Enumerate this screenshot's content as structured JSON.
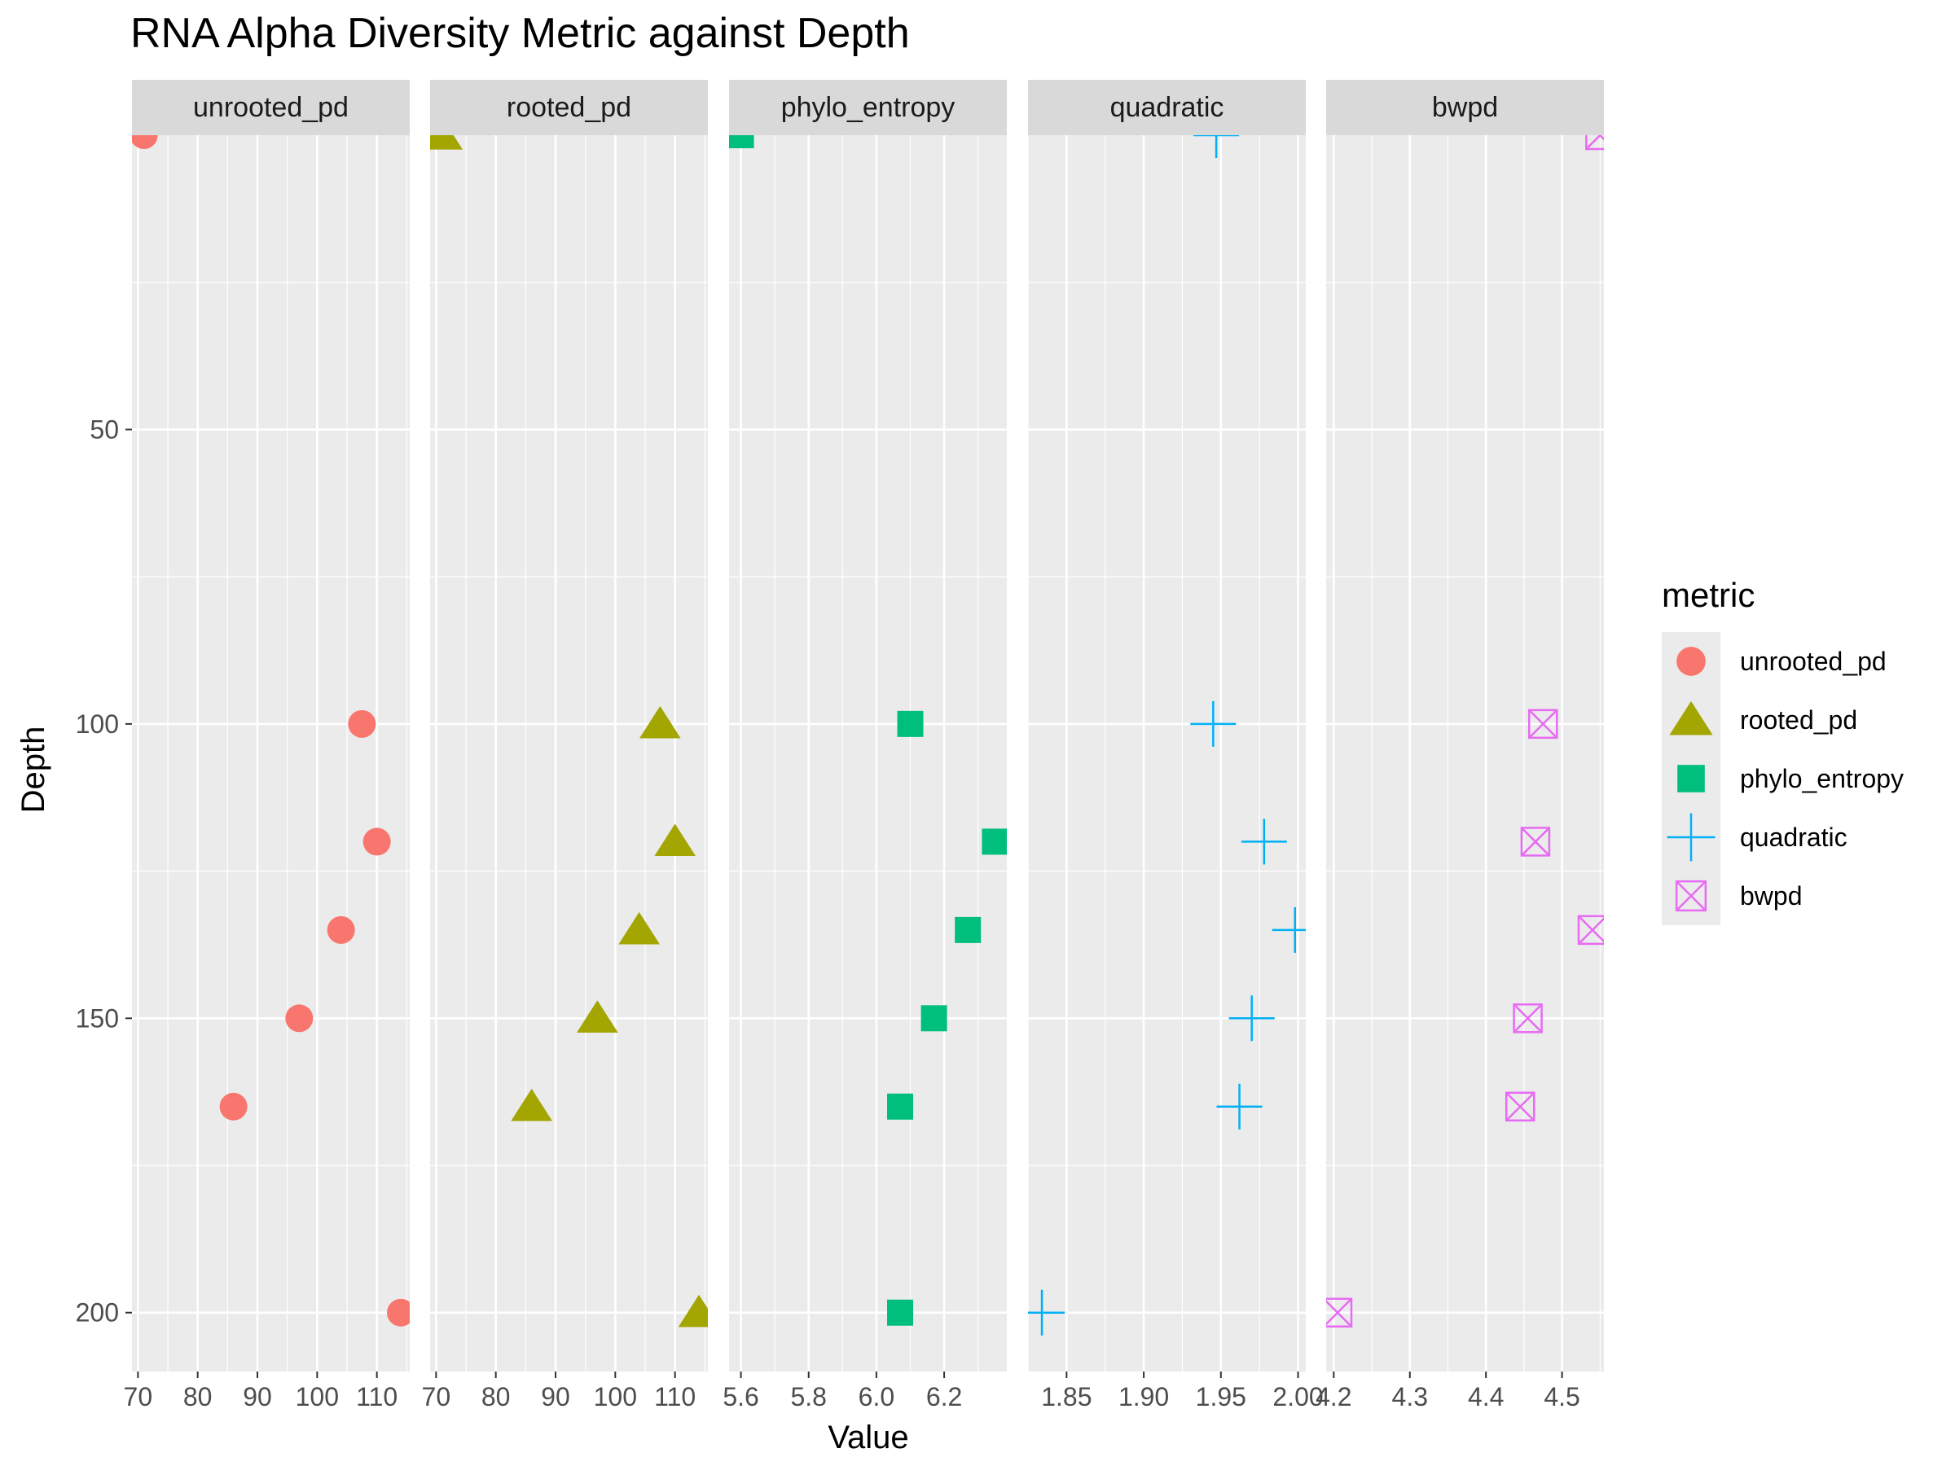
{
  "chart_data": {
    "type": "scatter",
    "title": "RNA Alpha Diversity Metric against Depth",
    "xlabel": "Value",
    "ylabel": "Depth",
    "y_reversed": true,
    "ylim": [
      0,
      210
    ],
    "y_ticks": [
      50,
      100,
      150,
      200
    ],
    "legend": {
      "title": "metric",
      "position": "right",
      "entries": [
        "unrooted_pd",
        "rooted_pd",
        "phylo_entropy",
        "quadratic",
        "bwpd"
      ]
    },
    "depths": [
      0,
      100,
      120,
      135,
      150,
      165,
      200
    ],
    "panels": [
      {
        "name": "unrooted_pd",
        "shape": "circle",
        "color": "#F8766D",
        "xlim": [
          69,
          115.5
        ],
        "x_ticks": [
          70,
          80,
          90,
          100,
          110
        ],
        "x_tick_labels": [
          "70",
          "80",
          "90",
          "100",
          "110"
        ],
        "points": [
          [
            71,
            0
          ],
          [
            107.5,
            100
          ],
          [
            110,
            120
          ],
          [
            104,
            135
          ],
          [
            97,
            150
          ],
          [
            86,
            165
          ],
          [
            114,
            200
          ]
        ]
      },
      {
        "name": "rooted_pd",
        "shape": "triangle",
        "color": "#A3A500",
        "xlim": [
          69,
          115.5
        ],
        "x_ticks": [
          70,
          80,
          90,
          100,
          110
        ],
        "x_tick_labels": [
          "70",
          "80",
          "90",
          "100",
          "110"
        ],
        "points": [
          [
            71,
            0
          ],
          [
            107.5,
            100
          ],
          [
            110,
            120
          ],
          [
            104,
            135
          ],
          [
            97,
            150
          ],
          [
            86,
            165
          ],
          [
            114,
            200
          ]
        ]
      },
      {
        "name": "phylo_entropy",
        "shape": "square",
        "color": "#00BF7D",
        "xlim": [
          5.565,
          6.385
        ],
        "x_ticks": [
          5.6,
          5.8,
          6.0,
          6.2
        ],
        "x_tick_labels": [
          "5.6",
          "5.8",
          "6.0",
          "6.2"
        ],
        "points": [
          [
            5.6,
            0
          ],
          [
            6.1,
            100
          ],
          [
            6.35,
            120
          ],
          [
            6.27,
            135
          ],
          [
            6.17,
            150
          ],
          [
            6.07,
            165
          ],
          [
            6.07,
            200
          ]
        ]
      },
      {
        "name": "quadratic",
        "shape": "plus",
        "color": "#00B0F6",
        "xlim": [
          1.825,
          2.005
        ],
        "x_ticks": [
          1.85,
          1.9,
          1.95,
          2.0
        ],
        "x_tick_labels": [
          "1.85",
          "1.90",
          "1.95",
          "2.00"
        ],
        "points": [
          [
            1.947,
            0
          ],
          [
            1.945,
            100
          ],
          [
            1.978,
            120
          ],
          [
            1.998,
            135
          ],
          [
            1.97,
            150
          ],
          [
            1.962,
            165
          ],
          [
            1.834,
            200
          ]
        ]
      },
      {
        "name": "bwpd",
        "shape": "square-x",
        "color": "#E76BF3",
        "xlim": [
          4.19,
          4.555
        ],
        "x_ticks": [
          4.2,
          4.3,
          4.4,
          4.5
        ],
        "x_tick_labels": [
          "4.2",
          "4.3",
          "4.4",
          "4.5"
        ],
        "points": [
          [
            4.55,
            0
          ],
          [
            4.475,
            100
          ],
          [
            4.465,
            120
          ],
          [
            4.54,
            135
          ],
          [
            4.455,
            150
          ],
          [
            4.445,
            165
          ],
          [
            4.205,
            200
          ]
        ]
      }
    ]
  }
}
